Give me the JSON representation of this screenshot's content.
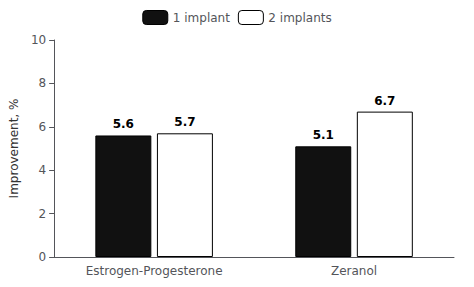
{
  "chart_data": {
    "type": "bar",
    "categories": [
      "Estrogen-Progesterone",
      "Zeranol"
    ],
    "series": [
      {
        "name": "1 implant",
        "color": "#111111",
        "values": [
          5.6,
          5.1
        ]
      },
      {
        "name": "2 implants",
        "color": "#ffffff",
        "values": [
          5.7,
          6.7
        ]
      }
    ],
    "ylabel": "Improvement, %",
    "ylim": [
      0,
      10
    ],
    "yticks": [
      0,
      2,
      4,
      6,
      8,
      10
    ],
    "grid": false,
    "legend": "top",
    "data_labels": true
  }
}
